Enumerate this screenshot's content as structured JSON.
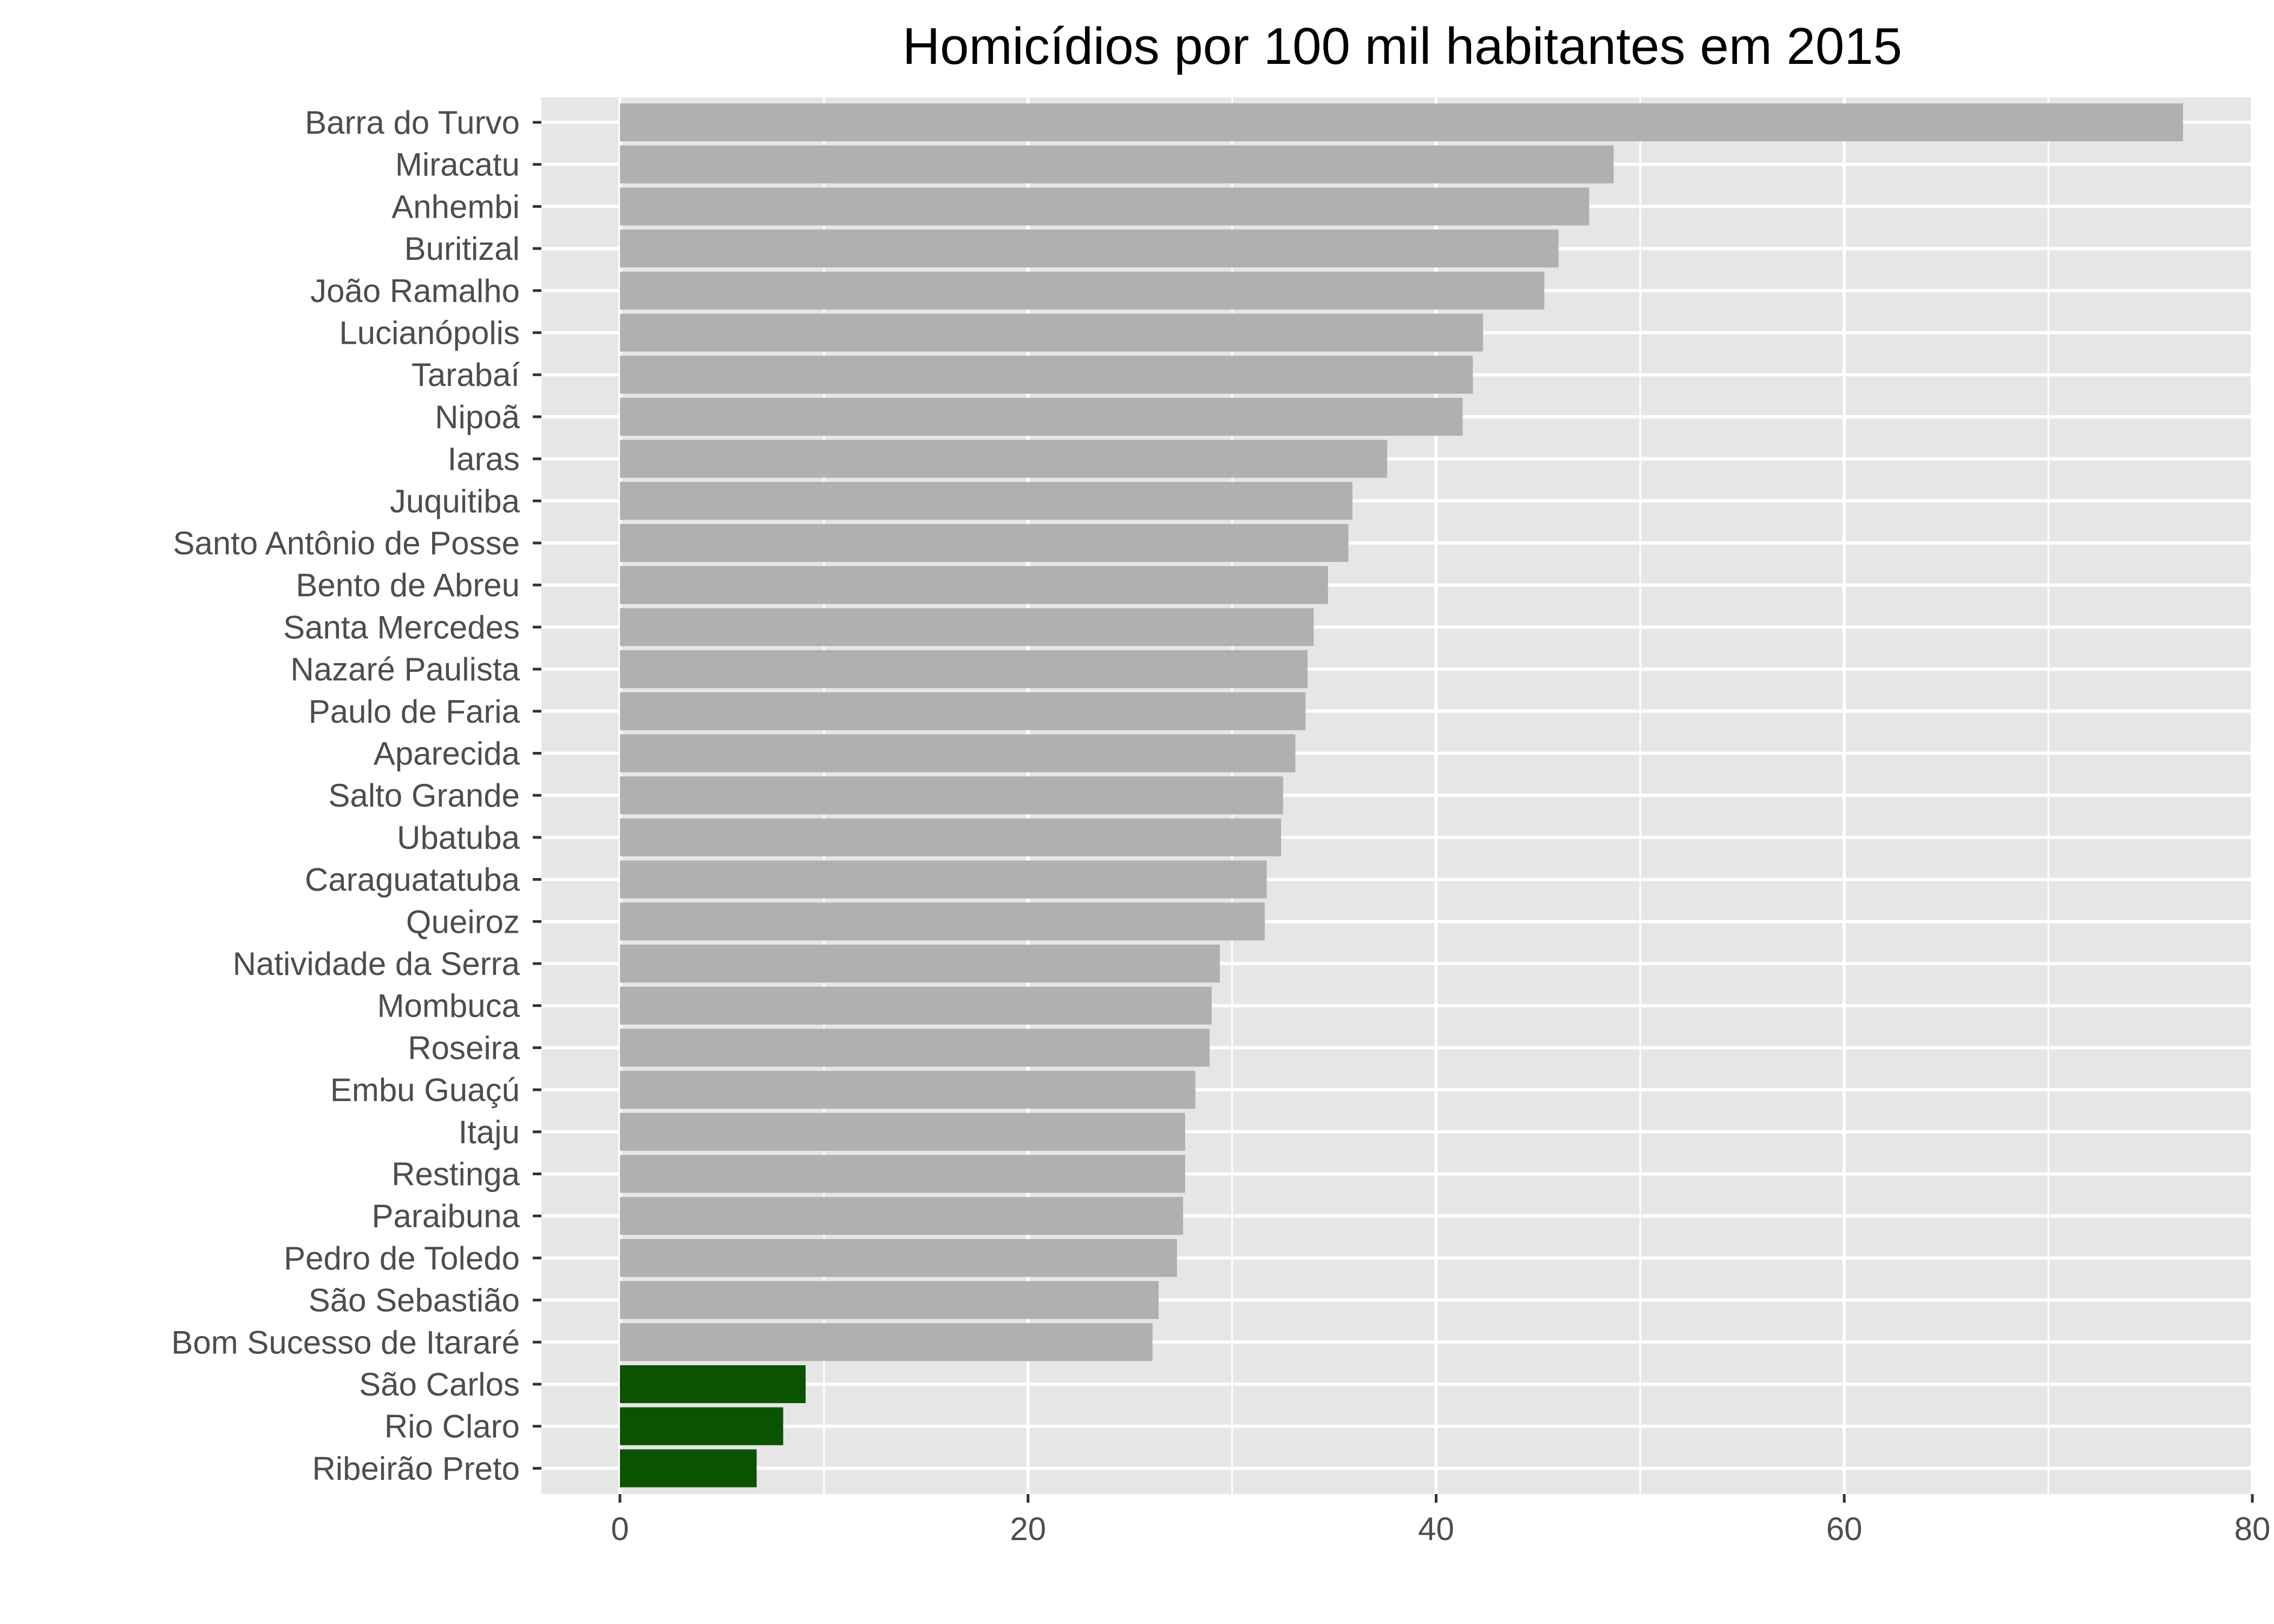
{
  "chart_data": {
    "type": "bar",
    "orientation": "horizontal",
    "title": "Homicídios por 100 mil habitantes em 2015",
    "xlabel": "",
    "ylabel": "",
    "xlim": [
      0,
      80
    ],
    "x_ticks": [
      0,
      20,
      40,
      60,
      80
    ],
    "grid": true,
    "legend": "none",
    "colors": {
      "default_bar": "#b0b0b0",
      "highlight_bar": "#0b5300",
      "panel_background": "#e6e6e6",
      "grid": "#ffffff",
      "text": "#4d4d4d"
    },
    "categories": [
      "Barra do Turvo",
      "Miracatu",
      "Anhembi",
      "Buritizal",
      "João Ramalho",
      "Lucianópolis",
      "Tarabaí",
      "Nipoã",
      "Iaras",
      "Juquitiba",
      "Santo Antônio de Posse",
      "Bento de Abreu",
      "Santa Mercedes",
      "Nazaré Paulista",
      "Paulo de Faria",
      "Aparecida",
      "Salto Grande",
      "Ubatuba",
      "Caraguatatuba",
      "Queiroz",
      "Natividade da Serra",
      "Mombuca",
      "Roseira",
      "Embu Guaçú",
      "Itaju",
      "Restinga",
      "Paraibuna",
      "Pedro de Toledo",
      "São Sebastião",
      "Bom Sucesso de Itararé",
      "São Carlos",
      "Rio Claro",
      "Ribeirão Preto"
    ],
    "values": [
      76.6,
      48.7,
      47.5,
      46.0,
      45.3,
      42.3,
      41.8,
      41.3,
      37.6,
      35.9,
      35.7,
      34.7,
      34.0,
      33.7,
      33.6,
      33.1,
      32.5,
      32.4,
      31.7,
      31.6,
      29.4,
      29.0,
      28.9,
      28.2,
      27.7,
      27.7,
      27.6,
      27.3,
      26.4,
      26.1,
      9.1,
      8.0,
      6.7
    ],
    "highlighted": [
      false,
      false,
      false,
      false,
      false,
      false,
      false,
      false,
      false,
      false,
      false,
      false,
      false,
      false,
      false,
      false,
      false,
      false,
      false,
      false,
      false,
      false,
      false,
      false,
      false,
      false,
      false,
      false,
      false,
      false,
      true,
      true,
      true
    ]
  }
}
